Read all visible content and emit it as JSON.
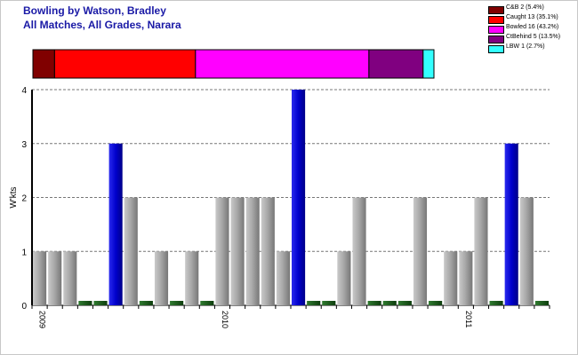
{
  "header": {
    "title_line1": "Bowling by Watson, Bradley",
    "title_line2": "All Matches, All Grades, Narara"
  },
  "legend": [
    {
      "label": "C&B 2 (5.4%)",
      "color": "#800000"
    },
    {
      "label": "Caught 13 (35.1%)",
      "color": "#ff0000"
    },
    {
      "label": "Bowled 16 (43.2%)",
      "color": "#ff00ff"
    },
    {
      "label": "CtBehind 5 (13.5%)",
      "color": "#800080"
    },
    {
      "label": "LBW 1 (2.7%)",
      "color": "#33ffff"
    }
  ],
  "chart_data": [
    {
      "type": "bar",
      "orientation": "horizontal-stacked",
      "series": [
        {
          "name": "C&B",
          "values": [
            2
          ],
          "color": "#800000"
        },
        {
          "name": "Caught",
          "values": [
            13
          ],
          "color": "#ff0000"
        },
        {
          "name": "Bowled",
          "values": [
            16
          ],
          "color": "#ff00ff"
        },
        {
          "name": "CtBehind",
          "values": [
            5
          ],
          "color": "#800080"
        },
        {
          "name": "LBW",
          "values": [
            1
          ],
          "color": "#33ffff"
        }
      ]
    },
    {
      "type": "bar",
      "ylabel": "W'kts",
      "ylim": [
        0,
        4
      ],
      "yticks": [
        0,
        1,
        2,
        3,
        4
      ],
      "grid": true,
      "values": [
        1,
        1,
        1,
        0,
        0,
        3,
        2,
        0,
        1,
        0,
        1,
        0,
        2,
        2,
        2,
        2,
        1,
        4,
        0,
        0,
        1,
        2,
        0,
        0,
        0,
        2,
        0,
        1,
        1,
        2,
        0,
        3,
        2,
        0
      ],
      "colors": {
        "regular": "#a8a8a8",
        "max_in_season": "#0000cc",
        "zero": "#1e5a1e"
      },
      "x_tick_labels": [
        {
          "label": "2009",
          "index": 0
        },
        {
          "label": "2010",
          "index": 12
        },
        {
          "label": "2011",
          "index": 28
        }
      ]
    }
  ]
}
